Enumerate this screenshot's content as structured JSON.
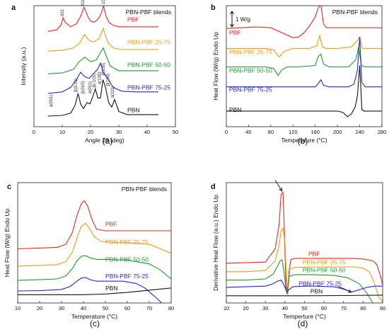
{
  "colors": {
    "PBF": "#e8281e",
    "PBN-PBF 25-75": "#f39a16",
    "PBN-PBF 50-50": "#1f9a2e",
    "PBN-PBF 75-25": "#2525e0",
    "PBN": "#111111"
  },
  "chart_data": [
    {
      "panel": "a",
      "caption": "(a)",
      "type": "line",
      "title": "PBN-PBF blends",
      "xlabel": "Angle 2θ (deg)",
      "ylabel": "Intensity (a.u.)",
      "xlim": [
        0,
        50
      ],
      "ylim": [
        0,
        8
      ],
      "xticks": [
        0,
        10,
        20,
        30,
        40,
        50
      ],
      "xtick_labels": [
        "0",
        "10",
        "20",
        "30",
        "40",
        "50"
      ],
      "series": [
        {
          "name": "PBF",
          "label": "PBF",
          "label_x": 33,
          "label_y": 6.95,
          "x": [
            5,
            8,
            9.5,
            10.3,
            11,
            13,
            15,
            16.5,
            17.7,
            19,
            20,
            21,
            22,
            23,
            24,
            24.6,
            25.5,
            26.5,
            28,
            30,
            33,
            36,
            40,
            44
          ],
          "y": [
            6.3,
            6.4,
            6.7,
            7.2,
            6.9,
            6.6,
            6.8,
            7.3,
            7.9,
            7.3,
            7.0,
            6.9,
            7.0,
            7.2,
            7.6,
            8.0,
            7.3,
            6.9,
            6.7,
            6.6,
            6.6,
            6.6,
            6.6,
            6.6
          ]
        },
        {
          "name": "PBN-PBF 25-75",
          "label": "PBN-PBF 25-75",
          "label_x": 33,
          "label_y": 5.45,
          "x": [
            5,
            10,
            14,
            16.5,
            17.8,
            19.5,
            21,
            23,
            24.5,
            26,
            28,
            31,
            36,
            44
          ],
          "y": [
            5.0,
            5.05,
            5.2,
            5.6,
            6.1,
            5.7,
            5.6,
            5.8,
            6.5,
            5.6,
            5.2,
            5.1,
            5.1,
            5.1
          ]
        },
        {
          "name": "PBN-PBF 50-50",
          "label": "PBN-PBF 50-50",
          "label_x": 33,
          "label_y": 3.95,
          "x": [
            5,
            10,
            14,
            16,
            18,
            20,
            22,
            23.5,
            24.5,
            25.5,
            27,
            30,
            35,
            44
          ],
          "y": [
            3.5,
            3.55,
            3.8,
            4.3,
            4.6,
            4.3,
            4.4,
            4.9,
            5.2,
            4.7,
            4.0,
            3.7,
            3.7,
            3.7
          ]
        },
        {
          "name": "PBN-PBF 75-25",
          "label": "PBN-PBF 75-25",
          "label_x": 33,
          "label_y": 2.45,
          "x": [
            5,
            10,
            13,
            15,
            16.5,
            18,
            19.5,
            21,
            22.5,
            23.5,
            24.5,
            26,
            28,
            31,
            36,
            44
          ],
          "y": [
            2.2,
            2.3,
            2.6,
            3.1,
            3.6,
            3.3,
            3.2,
            3.5,
            3.8,
            4.2,
            3.6,
            3.2,
            2.6,
            2.35,
            2.3,
            2.3
          ]
        },
        {
          "name": "PBN",
          "label": "PBN",
          "label_x": 33,
          "label_y": 0.95,
          "x": [
            5,
            10,
            13,
            14.5,
            15.6,
            16.5,
            17.5,
            18.8,
            19.8,
            20.8,
            21.7,
            22.6,
            23.5,
            24.4,
            25.3,
            26.4,
            27.5,
            28.5,
            30,
            33,
            36,
            40,
            44
          ],
          "y": [
            0.7,
            0.75,
            0.9,
            1.4,
            2.2,
            1.5,
            1.2,
            1.6,
            1.5,
            2.0,
            2.5,
            1.9,
            1.9,
            3.1,
            2.6,
            1.6,
            1.3,
            1.8,
            1.0,
            0.8,
            0.8,
            0.8,
            0.8
          ]
        }
      ],
      "annotations": [
        {
          "text": "001",
          "x": 10.5,
          "y": 7.3,
          "rot": -90
        },
        {
          "text": "010",
          "x": 17.7,
          "y": 8.0,
          "rot": -90
        },
        {
          "text": "100",
          "x": 25,
          "y": 8.1,
          "rot": -90
        },
        {
          "text": "α(001)",
          "x": 6.5,
          "y": 1.3,
          "rot": -90
        },
        {
          "text": "β(0-11)",
          "x": 15.3,
          "y": 2.3,
          "rot": -90
        },
        {
          "text": "β(010)",
          "x": 17.8,
          "y": 2.2,
          "rot": -90
        },
        {
          "text": "α(011)",
          "x": 20.3,
          "y": 2.2,
          "rot": -90
        },
        {
          "text": "β(-101)",
          "x": 21.8,
          "y": 2.6,
          "rot": -90
        },
        {
          "text": "α(100)",
          "x": 23.6,
          "y": 2.8,
          "rot": -90
        },
        {
          "text": "β(100)",
          "x": 25,
          "y": 3.4,
          "rot": -90
        },
        {
          "text": "β(100)",
          "x": 26.6,
          "y": 2.7,
          "rot": -90
        },
        {
          "text": "α(111)",
          "x": 28.2,
          "y": 1.9,
          "rot": -90
        }
      ]
    },
    {
      "panel": "b",
      "caption": "(b)",
      "type": "line",
      "title": "PBN-PBF blends",
      "xlabel": "Temperature (°C)",
      "ylabel": "Heat Flow (W/g) Endo Up",
      "scale_bar": "1 W/g",
      "xlim": [
        0,
        280
      ],
      "ylim": [
        0,
        8.5
      ],
      "xticks": [
        0,
        40,
        80,
        120,
        160,
        200,
        240,
        280
      ],
      "xtick_labels": [
        "0",
        "40",
        "80",
        "120",
        "160",
        "200",
        "240",
        "280"
      ],
      "series": [
        {
          "name": "PBF",
          "label": "PBF",
          "label_x": 5,
          "label_y": 6.45,
          "x": [
            0,
            30,
            45,
            60,
            80,
            100,
            120,
            130,
            140,
            150,
            160,
            165,
            170,
            175,
            180,
            200,
            240,
            280
          ],
          "y": [
            6.9,
            6.95,
            7.0,
            7.0,
            6.95,
            6.6,
            6.25,
            6.3,
            6.6,
            7.1,
            7.7,
            8.3,
            8.6,
            7.2,
            6.95,
            6.95,
            6.95,
            6.95
          ]
        },
        {
          "name": "PBN-PBF 25-75",
          "label": "PBN-PBF 25-75",
          "label_x": 5,
          "label_y": 5.1,
          "x": [
            0,
            40,
            70,
            85,
            95,
            105,
            120,
            150,
            163,
            168,
            173,
            180,
            200,
            225,
            235,
            240,
            245,
            255,
            280
          ],
          "y": [
            5.5,
            5.5,
            5.5,
            5.4,
            4.9,
            5.3,
            5.5,
            5.5,
            5.7,
            6.4,
            5.6,
            5.5,
            5.5,
            5.6,
            6.0,
            6.3,
            5.5,
            5.5,
            5.5
          ]
        },
        {
          "name": "PBN-PBF 50-50",
          "label": "PBN-PBF 50-50",
          "label_x": 5,
          "label_y": 3.8,
          "x": [
            0,
            40,
            70,
            85,
            93,
            100,
            110,
            130,
            160,
            165,
            170,
            175,
            185,
            220,
            233,
            238,
            243,
            250,
            280
          ],
          "y": [
            4.2,
            4.2,
            4.2,
            4.1,
            3.6,
            4.0,
            4.2,
            4.2,
            4.3,
            4.9,
            5.1,
            4.4,
            4.2,
            4.2,
            4.7,
            5.6,
            4.3,
            4.2,
            4.2
          ]
        },
        {
          "name": "PBN-PBF 75-25",
          "label": "PBN-PBF 75-25",
          "label_x": 5,
          "label_y": 2.45,
          "x": [
            0,
            60,
            120,
            160,
            165,
            170,
            175,
            185,
            220,
            230,
            236,
            240,
            244,
            250,
            280
          ],
          "y": [
            2.8,
            2.8,
            2.8,
            2.8,
            3.0,
            3.3,
            2.9,
            2.8,
            2.8,
            3.0,
            4.0,
            6.3,
            3.1,
            2.8,
            2.8
          ]
        },
        {
          "name": "PBN",
          "label": "PBN",
          "label_x": 5,
          "label_y": 1.05,
          "x": [
            0,
            60,
            120,
            180,
            200,
            210,
            218,
            225,
            232,
            236,
            240,
            244,
            248,
            255,
            280
          ],
          "y": [
            1.1,
            1.1,
            1.1,
            1.1,
            1.1,
            1.0,
            0.7,
            0.9,
            1.4,
            2.2,
            4.3,
            1.2,
            1.1,
            1.1,
            1.1
          ]
        }
      ]
    },
    {
      "panel": "c",
      "caption": "(c)",
      "type": "line",
      "title": "PBN-PBF blends",
      "xlabel": "Temperature (°C)",
      "ylabel": "Heat Flow (W/g) Endo Up",
      "xlim": [
        10,
        80
      ],
      "ylim": [
        0,
        8
      ],
      "xticks": [
        10,
        20,
        30,
        40,
        50,
        60,
        70,
        80
      ],
      "xtick_labels": [
        "10",
        "20",
        "30",
        "40",
        "50",
        "60",
        "70",
        "80"
      ],
      "series": [
        {
          "name": "PBF",
          "label": "PBF",
          "label_x": 50,
          "label_y": 5.1,
          "x": [
            10,
            20,
            28,
            32,
            35,
            37,
            39,
            40.5,
            42,
            44,
            46,
            50,
            60,
            70,
            80
          ],
          "y": [
            3.6,
            3.65,
            3.7,
            3.9,
            4.7,
            5.8,
            6.6,
            6.8,
            6.4,
            5.5,
            4.9,
            4.8,
            4.8,
            4.8,
            4.8
          ]
        },
        {
          "name": "PBN-PBF 25-75",
          "label": "PBN-PBF 25-75",
          "label_x": 50,
          "label_y": 3.9,
          "x": [
            10,
            20,
            28,
            32,
            35,
            37,
            39,
            41,
            43,
            45,
            48,
            52,
            60,
            70,
            80
          ],
          "y": [
            2.45,
            2.5,
            2.55,
            2.75,
            3.4,
            4.3,
            5.1,
            5.3,
            4.9,
            4.4,
            4.1,
            4.05,
            4.0,
            3.9,
            3.3
          ]
        },
        {
          "name": "PBN-PBF 50-50",
          "label": "PBN-PBF 50-50",
          "label_x": 50,
          "label_y": 2.75,
          "x": [
            10,
            20,
            28,
            32,
            35,
            37,
            39,
            41,
            43,
            46,
            50,
            60,
            70,
            75,
            80
          ],
          "y": [
            1.5,
            1.55,
            1.6,
            1.8,
            2.3,
            2.8,
            3.1,
            3.15,
            3.0,
            2.9,
            2.9,
            2.85,
            2.6,
            2.2,
            1.6
          ]
        },
        {
          "name": "PBN-PBF 75-25",
          "label": "PBN-PBF 75-25",
          "label_x": 50,
          "label_y": 1.65,
          "x": [
            10,
            20,
            30,
            34,
            37,
            39,
            41,
            43,
            46,
            50,
            58,
            64,
            68,
            72,
            75,
            77
          ],
          "y": [
            0.8,
            0.82,
            0.9,
            1.1,
            1.45,
            1.65,
            1.7,
            1.55,
            1.45,
            1.45,
            1.45,
            1.3,
            1.0,
            0.5,
            0.1,
            -0.3
          ]
        },
        {
          "name": "PBN",
          "label": "PBN",
          "label_x": 50,
          "label_y": 0.85,
          "x": [
            10,
            20,
            30,
            40,
            50,
            60,
            70,
            80
          ],
          "y": [
            0.55,
            0.55,
            0.55,
            0.55,
            0.6,
            0.7,
            0.85,
            1.0
          ]
        }
      ]
    },
    {
      "panel": "d",
      "caption": "(d)",
      "type": "line",
      "title": "",
      "xlabel": "Temperture (°C)",
      "ylabel": "Derivative Heat Flow (a.u.) Endo Up",
      "xlim": [
        10,
        90
      ],
      "ylim": [
        0,
        10
      ],
      "xticks": [
        10,
        20,
        30,
        40,
        50,
        60,
        70,
        80,
        90
      ],
      "xtick_labels": [
        "10",
        "20",
        "30",
        "40",
        "50",
        "60",
        "70",
        "80",
        "90"
      ],
      "series": [
        {
          "name": "PBF",
          "label": "PBF",
          "label_x": 52,
          "label_y": 3.9,
          "x": [
            10,
            20,
            30,
            35,
            37,
            38,
            39,
            39.5,
            40.5,
            41.5,
            42,
            43,
            45,
            55,
            65,
            75,
            80,
            85,
            87,
            89,
            90
          ],
          "y": [
            3.3,
            3.35,
            3.4,
            4.5,
            6.5,
            9.0,
            9.2,
            7.0,
            1.5,
            0.8,
            2.5,
            3.6,
            3.7,
            3.7,
            3.7,
            3.7,
            3.65,
            3.5,
            3.2,
            2.2,
            1.5
          ]
        },
        {
          "name": "PBN-PBF 25-75",
          "label": "PBN-PBF 25-75",
          "label_x": 49,
          "label_y": 3.2,
          "x": [
            10,
            20,
            30,
            35,
            37,
            38,
            39,
            40,
            40.8,
            41.5,
            42.5,
            45,
            55,
            65,
            75,
            80,
            83,
            85,
            87,
            88,
            90
          ],
          "y": [
            2.6,
            2.6,
            2.7,
            3.5,
            4.8,
            6.0,
            6.2,
            5.0,
            2.0,
            0.9,
            2.8,
            2.95,
            3.0,
            3.0,
            3.0,
            2.9,
            2.6,
            2.0,
            1.0,
            0.5,
            0.1
          ]
        },
        {
          "name": "PBN-PBF 50-50",
          "label": "PBN-PBF 50-50",
          "label_x": 49,
          "label_y": 2.55,
          "x": [
            10,
            20,
            30,
            34,
            36,
            37.5,
            38.5,
            39.5,
            40.5,
            41.2,
            42,
            45,
            55,
            65,
            72,
            78,
            82,
            85
          ],
          "y": [
            1.9,
            1.9,
            2.0,
            2.4,
            3.0,
            3.5,
            3.6,
            2.6,
            1.2,
            0.7,
            2.2,
            2.35,
            2.35,
            2.3,
            2.1,
            1.6,
            0.8,
            0.0
          ]
        },
        {
          "name": "PBN-PBF 75-25",
          "label": "PBN-PBF 75-25",
          "label_x": 47,
          "label_y": 1.45,
          "x": [
            10,
            20,
            30,
            34,
            36,
            38,
            39.5,
            41,
            42,
            44,
            50,
            55,
            65,
            70,
            74,
            78,
            82,
            86,
            90
          ],
          "y": [
            1.3,
            1.35,
            1.4,
            1.6,
            1.8,
            1.9,
            1.5,
            0.9,
            1.1,
            1.35,
            1.4,
            1.4,
            1.35,
            1.15,
            0.9,
            1.1,
            1.3,
            1.4,
            1.4
          ]
        },
        {
          "name": "PBN",
          "label": "PBN",
          "label_x": 53,
          "label_y": 0.8,
          "x": [
            10,
            30,
            50,
            70,
            90
          ],
          "y": [
            0.6,
            0.6,
            0.6,
            0.62,
            0.65
          ]
        }
      ],
      "arrows": [
        {
          "from": [
            35,
            10.2
          ],
          "to": [
            38.5,
            9.3
          ]
        },
        {
          "from": [
            67,
            1.4
          ],
          "to": [
            74,
            0.9
          ]
        }
      ]
    }
  ]
}
